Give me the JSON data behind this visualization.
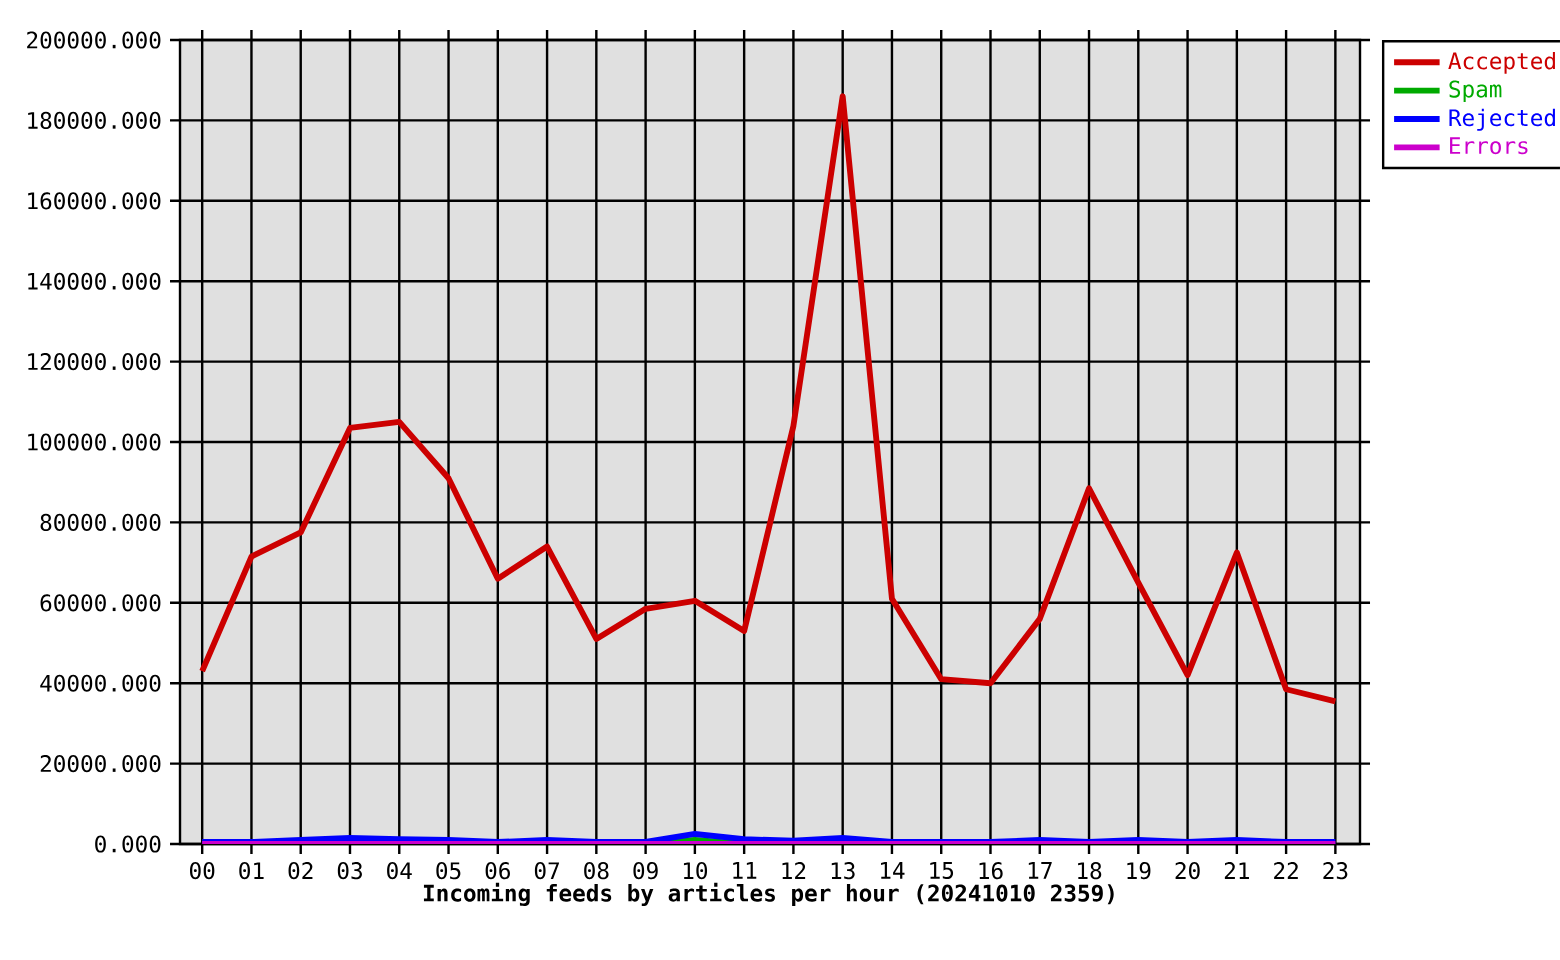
{
  "chart_data": {
    "type": "line",
    "xlabel": "Incoming feeds by articles per hour (20241010 2359)",
    "categories": [
      "00",
      "01",
      "02",
      "03",
      "04",
      "05",
      "06",
      "07",
      "08",
      "09",
      "10",
      "11",
      "12",
      "13",
      "14",
      "15",
      "16",
      "17",
      "18",
      "19",
      "20",
      "21",
      "22",
      "23"
    ],
    "series": [
      {
        "name": "Accepted",
        "color": "#cc0000",
        "values": [
          43000,
          71500,
          77500,
          103500,
          105000,
          91000,
          66000,
          74000,
          51000,
          58500,
          60500,
          53000,
          104000,
          186000,
          61000,
          41000,
          40000,
          56000,
          88500,
          65000,
          42000,
          72500,
          38500,
          35500
        ]
      },
      {
        "name": "Spam",
        "color": "#00aa00",
        "values": [
          null,
          null,
          null,
          null,
          null,
          null,
          null,
          null,
          null,
          0,
          1000,
          0,
          null,
          null,
          null,
          null,
          null,
          null,
          null,
          null,
          null,
          null,
          null,
          null
        ]
      },
      {
        "name": "Rejected",
        "color": "#0000ff",
        "values": [
          500,
          500,
          1000,
          1500,
          1200,
          1000,
          500,
          1000,
          500,
          500,
          2500,
          1200,
          800,
          1500,
          500,
          500,
          500,
          1000,
          500,
          1000,
          500,
          1000,
          500,
          500
        ]
      },
      {
        "name": "Errors",
        "color": "#cc00cc",
        "values": [
          0,
          0,
          0,
          0,
          0,
          0,
          0,
          0,
          0,
          0,
          0,
          0,
          0,
          0,
          0,
          0,
          0,
          0,
          0,
          0,
          0,
          0,
          0,
          0
        ]
      }
    ],
    "ylim": [
      0,
      200000
    ],
    "yticks": [
      {
        "value": 0,
        "label": "0.000"
      },
      {
        "value": 20000,
        "label": "20000.000"
      },
      {
        "value": 40000,
        "label": "40000.000"
      },
      {
        "value": 60000,
        "label": "60000.000"
      },
      {
        "value": 80000,
        "label": "80000.000"
      },
      {
        "value": 100000,
        "label": "100000.000"
      },
      {
        "value": 120000,
        "label": "120000.000"
      },
      {
        "value": 140000,
        "label": "140000.000"
      },
      {
        "value": 160000,
        "label": "160000.000"
      },
      {
        "value": 180000,
        "label": "180000.000"
      },
      {
        "value": 200000,
        "label": "200000.000"
      }
    ],
    "grid": true,
    "legend": "top right"
  }
}
